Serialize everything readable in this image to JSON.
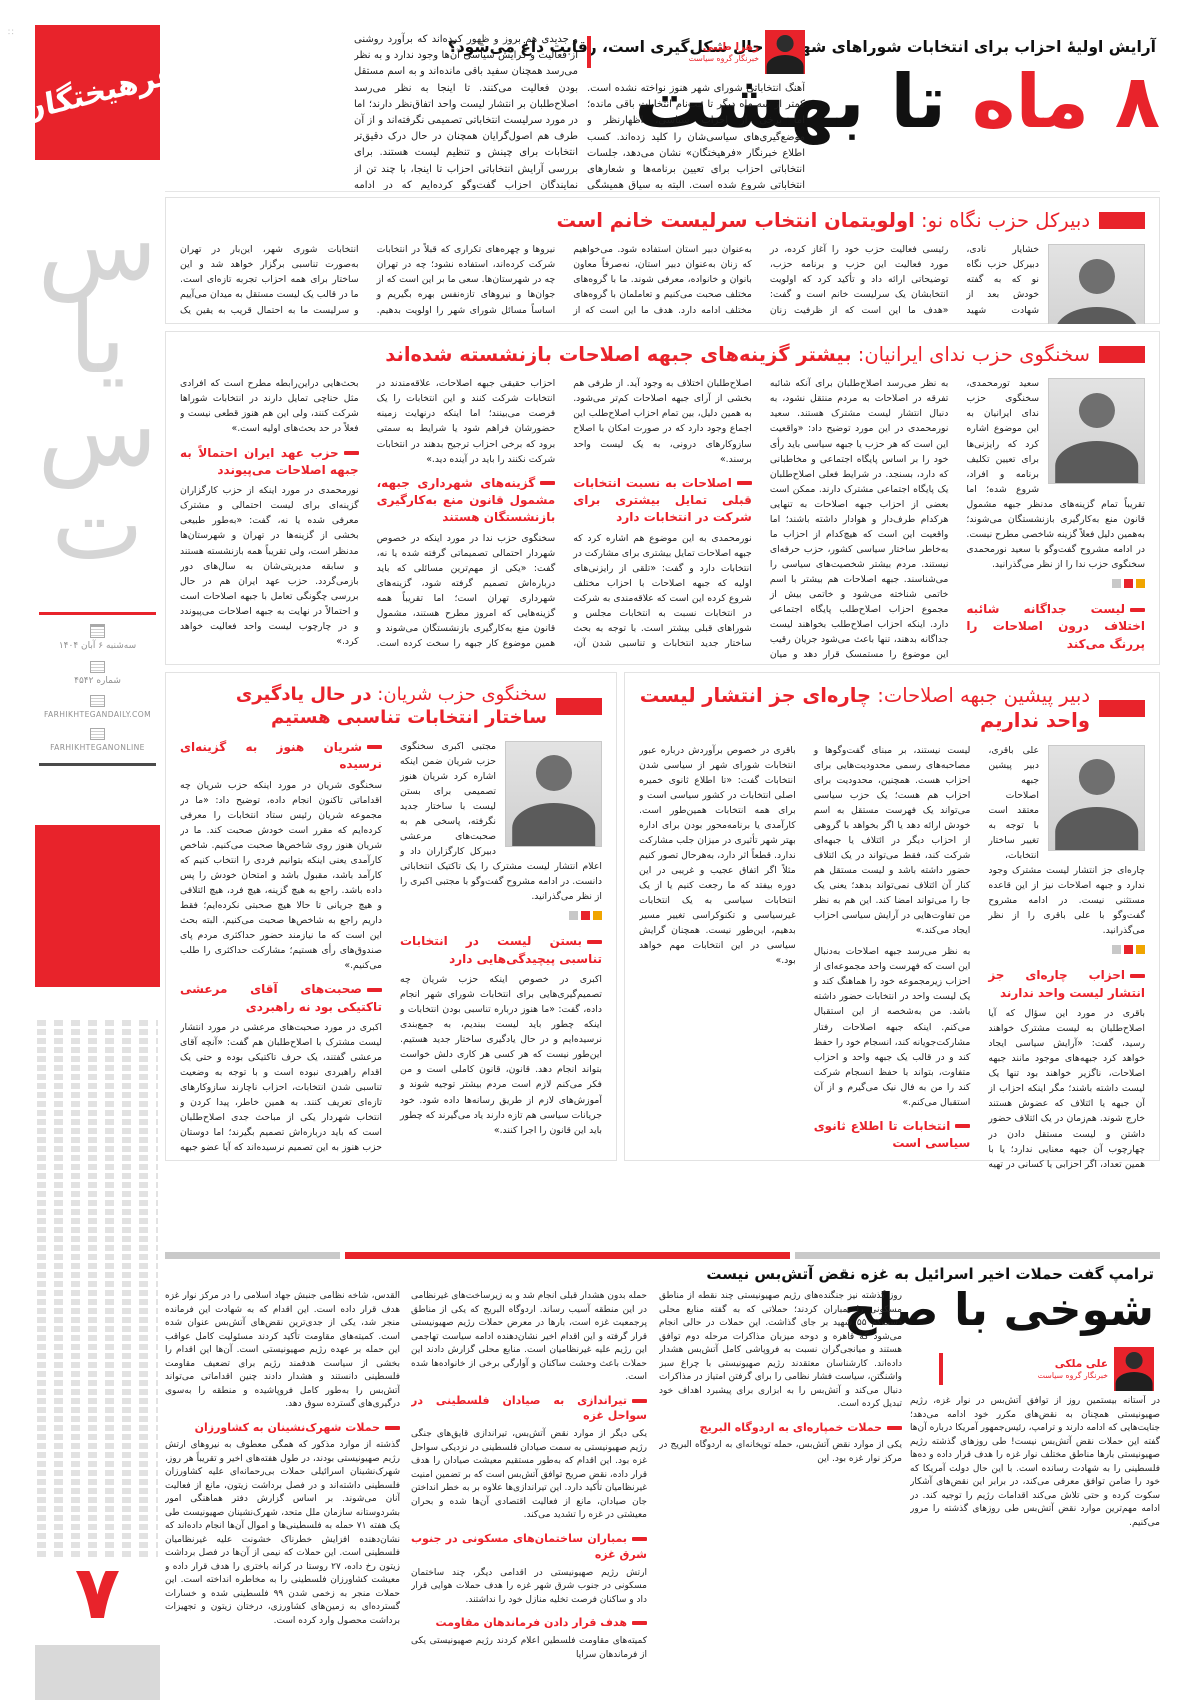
{
  "meta": {
    "logo": "فرهیختگان",
    "sec1": "س",
    "sec2": "یا",
    "sec3": "س",
    "sec4": "ت",
    "date": "سه‌شنبه ۶ آبان ۱۴۰۴",
    "issue": "شماره ۴۵۴۲",
    "site1": "FARHIKHTEGANDAILY.COM",
    "site2": "FARHIKHTEGANONLINE",
    "page": "۷",
    "corner": "∷"
  },
  "colors": {
    "accent": "#e8232b",
    "chip_yellow": "#f0a500",
    "chip_gray": "#c8c8c8"
  },
  "lead": {
    "kicker": "آرایش اولیهٔ احزاب برای انتخابات شوراهای شهر در حال شکل‌گیری است، رقابت داغ می‌شود؟",
    "h_red": "۸ ماه",
    "h_black": " تا بهشت",
    "author": "زهرا طیبی",
    "role": "خبرنگار گروه سیاست",
    "col_right": "آهنگ انتخاباتی شورای شهر هنوز نواخته نشده است. کمتر از سه ماه دیگر تا ثبت‌نام انتخابات باقی مانده؛ اما برخی از احزاب سیاسی، اظهارنظر و موضع‌گیری‌های سیاسی‌شان را کلید زده‌اند. کسب اطلاع خبرنگار «فرهیختگان» نشان می‌دهد، جلسات انتخاباتی احزاب برای تعیین برنامه‌ها و شعارهای انتخاباتی شروع شده است. البته به سیاق همیشگی انتخابات، احزاب تازه",
    "col_left": "و جدیدی هم بروز و ظهور کرده‌اند که برآورد روشنی از فعالیت و گرایش سیاسی آن‌ها وجود ندارد و به نظر می‌رسد همچنان سفید باقی مانده‌اند و به اسم مستقل بودن فعالیت می‌کنند. تا اینجا به نظر می‌رسد اصلاح‌طلبان بر انتشار لیست واحد اتفاق‌نظر دارند؛ اما در مورد سرلیست انتخاباتی تصمیمی نگرفته‌اند و از آن طرف هم اصول‌گرایان همچنان در حال درک دقیق‌تر انتخابات برای چینش و تنظیم لیست هستند. برای بررسی آرایش انتخاباتی احزاب تا اینجا، با چند تن از نمایندگان احزاب گفت‌وگو کرده‌ایم که در ادامه مشروح گفت‌وگوها را از نظر می‌گذرانید."
  },
  "articles": [
    {
      "prefix": "دبیرکل حزب نگاه نو:",
      "title": "اولویتمان انتخاب سرلیست خانم است",
      "blocks": [
        {
          "t": "p",
          "text": "خشایار نادی، دبیرکل حزب نگاه نو که به گفته خودش بعد از شهادت شهید رئیسی فعالیت حزب خود را آغاز کرده، در مورد فعالیت این حزب و برنامه حزب، توضیحاتی ارائه داد و تأکید کرد که اولویت انتخابشان یک سرلیست خانم است و گفت: «هدف ما این است که از ظرفیت زنان به‌عنوان دبیر استان استفاده شود. می‌خواهیم که زنان به‌عنوان دبیر استان، نه‌صرفاً معاون بانوان و خانواده، معرفی شوند. ما با گروه‌های مختلف صحبت می‌کنیم و تعاملمان با گروه‌های مختلف ادامه دارد. هدف ما این است که از نیروها و چهره‌های تکراری که قبلاً در انتخابات شرکت کرده‌اند، استفاده نشود؛ چه در تهران چه در شهرستان‌ها. سعی ما بر این است که از جوان‌ها و نیروهای تازه‌نفس بهره بگیریم و اساساً مسائل شورای شهر را اولویت بدهیم. انتخابات شوری شهر، این‌بار در تهران به‌صورت تناسبی برگزار خواهد شد و این ساختار برای همه احزاب تجربه تازه‌ای است. ما در قالب یک لیست مستقل به میدان می‌آییم و سرلیست ما به احتمال قریب به یقین یک خانم خواهد بود. ما اصراری نداریم حتماً با ائتلاف‌ها همراه شویم و بنابر شرایط، لیست نهایی ما از دل گفت‌وگو با گروه‌های مختلف بیرون خواهد آمد.»"
        }
      ]
    },
    {
      "prefix": "سخنگوی حزب ندای ایرانیان:",
      "title": "بیشتر گزینه‌های جبهه اصلاحات بازنشسته شده‌اند",
      "blocks": [
        {
          "t": "p",
          "text": "سعید تورمحمدی، سخنگوی حزب ندای ایرانیان به این موضوع اشاره کرد که رایزنی‌ها برای تعیین تکلیف برنامه و افراد، شروع شده؛ اما تقریباً تمام گزینه‌های مدنظر جبهه مشمول قانون منع به‌کارگیری بازنشستگان می‌شوند؛ به‌همین دلیل فعلاً گزینه شاخصی مطرح نیست. در ادامه مشروح گفت‌وگو با سعید نورمحمدی سخنگوی حزب ندا را از نظر می‌گذرانید."
        },
        {
          "t": "chips"
        },
        {
          "t": "sub",
          "text": "لیست جداگانه شائبه اختلاف درون اصلاحات را پررنگ می‌کند"
        },
        {
          "t": "p",
          "text": "به نظر می‌رسد اصلاح‌طلبان برای آنکه شائبه تفرقه در اصلاحات به مردم منتقل نشود، به دنبال انتشار لیست مشترک هستند. سعید نورمحمدی در این مورد توضیح داد: «واقعیت این است که هر حزب یا جبهه سیاسی باید رأی خود را بر اساس پایگاه اجتماعی و مخاطبانی که دارد، بسنجد. در شرایط فعلی اصلاح‌طلبان یک پایگاه اجتماعی مشترک دارند. ممکن است بعضی از احزاب جبهه اصلاحات به تنهایی هرکدام طرف‌دار و هوادار داشته باشند؛ اما واقعیت این است که هیچ‌کدام از احزاب ما به‌خاطر ساختار سیاسی کشور، حزب حرفه‌ای نیستند. مردم بیشتر شخصیت‌های سیاسی را می‌شناسند. جبهه اصلاحات هم بیشتر با اسم خاتمی شناخته می‌شود و خاتمی بیش از مجموع احزاب اصلاح‌طلب پایگاه اجتماعی دارد. اینکه احزاب اصلاح‌طلب بخواهند لیست جداگانه بدهند، تنها باعث می‌شود جریان رقیب این موضوع را مستمسک قرار دهد و میان اصلاح‌طلبان اختلاف به وجود آید. از طرفی هم بخشی از آرای جبهه اصلاحات کم‌تر می‌شود. به همین دلیل، بین تمام احزاب اصلاح‌طلب این اجماع وجود دارد که در صورت امکان با اصلاح سازوکارهای درونی، به یک لیست واحد برسند.»"
        },
        {
          "t": "sub",
          "text": "اصلاحات به نسبت انتخابات قبلی تمایل بیشتری برای شرکت در انتخابات دارد"
        },
        {
          "t": "p",
          "text": "نورمحمدی به این موضوع هم اشاره کرد که جبهه اصلاحات تمایل بیشتری برای مشارکت در انتخابات دارد و گفت: «تلقی از رایزنی‌های اولیه که جبهه اصلاحات با احزاب مختلف شروع کرده این است که علاقه‌مندی به شرکت در انتخابات نسبت به انتخابات مجلس و شوراهای قبلی بیشتر است. با توجه به بحث ساختار جدید انتخابات و تناسبی شدن آن، احزاب حقیقی جبهه اصلاحات، علاقه‌مندند در انتخابات شرکت کنند و این انتخابات را یک فرصت می‌بینند؛ اما اینکه درنهایت زمینه حضورشان فراهم شود یا شرایط به سمتی برود که برخی احزاب ترجیح بدهند در انتخابات شرکت نکنند را باید در آینده دید.»"
        },
        {
          "t": "sub",
          "text": "گزینه‌های شهرداری جبهه، مشمول قانون منع به‌کارگیری بازنشستگان هستند"
        },
        {
          "t": "p",
          "text": "سخنگوی حزب ندا در مورد اینکه در خصوص شهردار احتمالی تصمیماتی گرفته شده یا نه، گفت: «یکی از مهم‌ترین مسائلی که باید درباره‌اش تصمیم گرفته شود، گزینه‌های شهرداری تهران است؛ اما تقریباً همه گزینه‌هایی که امروز مطرح هستند، مشمول قانون منع به‌کارگیری بازنشستگان می‌شوند و همین موضوع کار جبهه را سخت کرده است. بحث‌هایی دراین‌رابطه مطرح است که افرادی مثل حناچی تمایل دارند در انتخابات شوراها شرکت کنند، ولی این هم هنوز قطعی نیست و فعلاً در حد بحث‌های اولیه است.»"
        },
        {
          "t": "sub",
          "text": "حزب عهد ایران احتمالاً به جبهه اصلاحات می‌پیوندد"
        },
        {
          "t": "p",
          "text": "نورمحمدی در مورد اینکه از حزب کارگزاران گزینه‌ای برای لیست احتمالی و مشترک معرفی شده یا نه، گفت: «به‌طور طبیعی بخشی از گزینه‌ها در تهران و شهرستان‌ها مدنظر است، ولی تقریباً همه بازنشسته هستند و سابقه مدیریتی‌شان به سال‌های دور بازمی‌گردد. حزب عهد ایران هم در حال بررسی چگونگی تعامل با جبهه اصلاحات است و احتمالاً در نهایت به جبهه اصلاحات می‌پیوندد و در چارچوب لیست واحد فعالیت خواهد کرد.»"
        }
      ]
    },
    {
      "prefix": "سخنگوی حزب شریان:",
      "title": "در حال یادگیری ساختار انتخابات تناسبی هستیم",
      "blocks": [
        {
          "t": "p",
          "text": "مجتبی اکبری سخنگوی حزب شریان ضمن اینکه اشاره کرد شریان هنوز تصمیمی برای بستن لیست با ساختار جدید نگرفته، پاسخی هم به صحبت‌های مرعشی دبیرکل کارگزاران داد و اعلام انتشار لیست مشترک را یک تاکتیک انتخاباتی دانست. در ادامه مشروح گفت‌وگو با مجتبی اکبری را از نظر می‌گذرانید."
        },
        {
          "t": "chips"
        },
        {
          "t": "sub",
          "text": "بستن لیست در انتخابات تناسبی پیچیدگی‌هایی دارد"
        },
        {
          "t": "p",
          "text": "اکبری در خصوص اینکه حزب شریان چه تصمیم‌گیری‌هایی برای انتخابات شورای شهر انجام داده، گفت: «ما هنوز درباره تناسبی بودن انتخابات و اینکه چطور باید لیست ببندیم، به جمع‌بندی نرسیده‌ایم و در حال یادگیری ساختار جدید هستیم. این‌طور نیست که هر کسی هر کاری دلش خواست بتواند انجام دهد. قانون، قانون کاملی است و من فکر می‌کنم لازم است مردم بیشتر توجیه شوند و آموزش‌های لازم از طریق رسانه‌ها داده شود. خود جریانات سیاسی هم تازه دارند یاد می‌گیرند که چطور باید این قانون را اجرا کنند.»"
        },
        {
          "t": "sub",
          "text": "شریان هنوز به گزینه‌ای نرسیده"
        },
        {
          "t": "p",
          "text": "سخنگوی شریان در مورد اینکه حزب شریان چه اقداماتی تاکنون انجام داده، توضیح داد: «ما در مجموعه شریان رئیس ستاد انتخابات را معرفی کرده‌ایم که مقرر است خودش صحبت کند. ما در شریان هنوز روی شاخص‌ها صحبت می‌کنیم. شاخص کارآمدی یعنی اینکه بتوانیم فردی را انتخاب کنیم که کارآمد باشد، مقبول باشد و امتحان خودش را پس داده باشد. راجع به هیچ گزینه، هیچ فرد، هیچ ائتلافی و هیچ جریانی تا حالا هیچ صحبتی نکرده‌ایم؛ فقط داریم راجع به شاخص‌ها صحبت می‌کنیم. البته بحث این است که ما نیازمند حضور حداکثری مردم پای صندوق‌های رأی هستیم؛ مشارکت حداکثری را طلب می‌کنیم.»"
        },
        {
          "t": "sub",
          "text": "صحبت‌های آقای مرعشی تاکتیکی بود نه راهبردی"
        },
        {
          "t": "p",
          "text": "اکبری در مورد صحبت‌های مرعشی در مورد انتشار لیست مشترک با اصلاح‌طلبان هم گفت: «آنچه آقای مرعشی گفتند، یک حرف تاکتیکی بوده و حتی یک اقدام راهبردی نبوده است و با توجه به وضعیت تناسبی شدن انتخابات، احزاب ناچارند سازوکارهای تازه‌ای تعریف کنند. به همین خاطر، پیدا کردن و انتخاب شهردار یکی از مباحث جدی اصلاح‌طلبان است که باید درباره‌اش تصمیم بگیرند؛ اما دوستان حزب هنوز به این تصمیم نرسیده‌اند که آیا عضو جبهه اصلاحات باشند یا بیرون از جبهه اصلاحات فعالیت کنند.»"
        }
      ]
    },
    {
      "prefix": "دبیر پیشین جبهه اصلاحات:",
      "title": "چاره‌ای جز انتشار لیست واحد نداریم",
      "blocks": [
        {
          "t": "p",
          "text": "علی باقری، دبیر پیشین جبهه اصلاحات معتقد است با توجه به تغییر ساختار انتخابات، چاره‌ای جز انتشار لیست مشترک وجود ندارد و جبهه اصلاحات نیز از این قاعده مستثنی نیست. در ادامه مشروح گفت‌وگو با علی باقری را از نظر می‌گذرانید."
        },
        {
          "t": "chips"
        },
        {
          "t": "sub",
          "text": "احزاب چاره‌ای جز انتشار لیست واحد ندارند"
        },
        {
          "t": "p",
          "text": "باقری در مورد این سؤال که آیا اصلاح‌طلبان به لیست مشترک خواهند رسید، گفت: «آرایش سیاسی ایجاد خواهد کرد جبهه‌های موجود مانند جبهه اصلاحات، ناگزیر خواهند بود تنها یک لیست داشته باشند؛ مگر اینکه احزاب از آن جبهه یا ائتلاف که عضوش هستند خارج شوند. هم‌زمان در یک ائتلاف حضور داشتن و لیست مستقل دادن در چهارچوب آن جبهه معنایی ندارد؛ یا با همین تعداد، اگر احزابی یا کسانی در تهیه لیست نیستند، بر مبنای گفت‌وگوها و مصاحبه‌های رسمی محدودیت‌هایی برای احزاب هست. همچنین، محدودیت برای احزاب هم هست؛ یک حزب سیاسی می‌تواند یک فهرست مستقل به اسم خودش ارائه دهد یا اگر بخواهد با گروهی از احزاب دیگر در ائتلاف یا جبهه‌ای شرکت کند، فقط می‌تواند در یک ائتلاف حضور داشته باشد و لیست مستقل هم کنار آن ائتلاف نمی‌تواند بدهد؛ یعنی یک جا را می‌تواند امضا کند. این هم به نظر من تفاوت‌هایی در آرایش سیاسی احزاب ایجاد می‌کند.»"
        },
        {
          "t": "p",
          "text": "به نظر می‌رسد جبهه اصلاحات به‌دنبال این است که فهرست واحد مجموعه‌ای از احزاب زیرمجموعه خود را هماهنگ کند و یک لیست واحد در انتخابات حضور داشته باشد. من به‌شخصه از این استقبال می‌کنم. اینکه جبهه اصلاحات رفتار مشارکت‌جویانه کند، انسجام خود را حفظ کند و در قالب یک جبهه واحد و احزاب متفاوت، بتواند با حفظ انسجام شرکت کند را من به فال نیک می‌گیرم و از آن استقبال می‌کنم.»"
        },
        {
          "t": "sub",
          "text": "انتخابات تا اطلاع ثانوی سیاسی است"
        },
        {
          "t": "p",
          "text": "باقری در خصوص برآوردش درباره عبور انتخابات شورای شهر از سیاسی شدن انتخابات گفت: «تا اطلاع ثانوی خمیره اصلی انتخابات در کشور سیاسی است و برای همه انتخابات همین‌طور است. کارآمدی یا برنامه‌محور بودن برای اداره بهتر شهر تأثیری در میزان جلب مشارکت ندارد. قطعاً اثر دارد، به‌هرحال تصور کنیم مثلاً اگر اتفاق عجیب و غریبی در این دوره بیفتد که ما رجعت کنیم یا از یک انتخابات سیاسی به یک انتخابات غیرسیاسی و تکنوکراسی تغییر مسیر بدهیم، این‌طور نیست. همچنان گرایش سیاسی در این انتخابات مهم خواهد بود.»"
        }
      ]
    }
  ],
  "bottom": {
    "kicker": "ترامپ گفت حملات اخیر اسرائیل به غزه نقض آتش‌بس نیست",
    "title": "شوخی با صلح",
    "author": "علی ملکی",
    "role": "خبرنگار گروه سیاست",
    "columns": {
      "a": [
        {
          "t": "p",
          "text": "در آستانه بیستمین روز از توافق آتش‌بس در نوار غزه، رژیم صهیونیستی همچنان به نقض‌های مکرر خود ادامه می‌دهد؛ جنایت‌هایی که ادامه دارند و ترامپ، رئیس‌جمهور آمریکا درباره آن‌ها گفته این حملات نقض آتش‌بس نیست! طی روزهای گذشته رژیم صهیونیستی بارها مناطق مختلف نوار غزه را هدف قرار داده و ده‌ها فلسطینی را به شهادت رسانده است. با این حال دولت آمریکا که خود را ضامن توافق معرفی می‌کند، در برابر این نقض‌های آشکار سکوت کرده و حتی تلاش می‌کند اقدامات رژیم را توجیه کند. در ادامه مهم‌ترین موارد نقض آتش‌بس طی روزهای گذشته را مرور می‌کنیم."
        }
      ],
      "b": [
        {
          "t": "p",
          "text": "روز گذشته نیز جنگنده‌های رژیم صهیونیستی چند نقطه از مناطق مسکونی را بمباران کردند؛ حملاتی که به گفته منابع محلی دست‌کم ۵۵ شهید بر جای گذاشت. این حملات در حالی انجام می‌شود که قاهره و دوحه میزبان مذاکرات مرحله دوم توافق هستند و میانجی‌گران نسبت به فروپاشی کامل آتش‌بس هشدار داده‌اند. کارشناسان معتقدند رژیم صهیونیستی با چراغ سبز واشنگتن، سیاست فشار نظامی را برای گرفتن امتیاز در مذاکرات دنبال می‌کند و آتش‌بس را به ابزاری برای پیشبرد اهداف خود تبدیل کرده است."
        },
        {
          "t": "sub",
          "text": "حملات خمپاره‌ای به اردوگاه البریج"
        },
        {
          "t": "p",
          "text": "یکی از موارد نقض آتش‌بس، حمله توپخانه‌ای به اردوگاه البریج در مرکز نوار غزه بود. این"
        }
      ],
      "c": [
        {
          "t": "p",
          "text": "حمله بدون هشدار قبلی انجام شد و به زیرساخت‌های غیرنظامی در این منطقه آسیب رساند. اردوگاه البریج که یکی از مناطق پرجمعیت غزه است، بارها در معرض حملات رژیم صهیونیستی قرار گرفته و این اقدام اخیر نشان‌دهنده ادامه سیاست تهاجمی این رژیم علیه غیرنظامیان است. منابع محلی گزارش دادند این حملات باعث وحشت ساکنان و آوارگی برخی از خانواده‌ها شده است."
        },
        {
          "t": "sub",
          "text": "تیراندازی به صیادان فلسطینی در سواحل غزه"
        },
        {
          "t": "p",
          "text": "یکی دیگر از موارد نقض آتش‌بس، تیراندازی قایق‌های جنگی رژیم صهیونیستی به سمت صیادان فلسطینی در نزدیکی سواحل غزه بود. این اقدام که به‌طور مستقیم معیشت صیادان را هدف قرار داده، نقض صریح توافق آتش‌بس است که بر تضمین امنیت غیرنظامیان تأکید دارد. این تیراندازی‌ها علاوه بر به خطر انداختن جان صیادان، مانع از فعالیت اقتصادی آن‌ها شده و بحران معیشتی در غزه را تشدید می‌کند."
        },
        {
          "t": "sub",
          "text": "بمباران ساختمان‌های مسکونی در جنوب شرق غزه"
        },
        {
          "t": "p",
          "text": "ارتش رژیم صهیونیستی در اقدامی دیگر، چند ساختمان مسکونی در جنوب شرق شهر غزه را هدف حملات هوایی قرار داد و ساکنان فرصت تخلیه منازل خود را نداشتند."
        },
        {
          "t": "sub",
          "text": "هدف قرار دادن فرماندهان مقاومت"
        },
        {
          "t": "p",
          "text": "کمیته‌های مقاومت فلسطین اعلام کردند رژیم صهیونیستی یکی از فرماندهان سرایا"
        }
      ],
      "d": [
        {
          "t": "p",
          "text": "القدس، شاخه نظامی جنبش جهاد اسلامی را در مرکز نوار غزه هدف قرار داده است. این اقدام که به شهادت این فرمانده منجر شد، یکی از جدی‌ترین نقض‌های آتش‌بس عنوان شده است. کمیته‌های مقاومت تأکید کردند مسئولیت کامل عواقب این حمله بر عهده رژیم صهیونیستی است. آن‌ها این اقدام را بخشی از سیاست هدفمند رژیم برای تضعیف مقاومت فلسطینی دانستند و هشدار دادند چنین اقداماتی می‌تواند آتش‌بس را به‌طور کامل فروپاشیده و منطقه را به‌سوی درگیری‌های گسترده سوق دهد."
        },
        {
          "t": "sub",
          "text": "حملات شهرک‌نشینان به کشاورزان"
        },
        {
          "t": "p",
          "text": "گذشته از موارد مذکور که همگی معطوف به نیروهای ارتش رژیم صهیونیستی بودند، در طول هفته‌های اخیر و تقریباً هر روز، شهرک‌نشینان اسرائیلی حملات بی‌رحمانه‌ای علیه کشاورزان فلسطینی داشته‌اند و در فصل برداشت زیتون، مانع از فعالیت آنان می‌شوند. بر اساس گزارش دفتر هماهنگی امور بشردوستانه سازمان ملل متحد، شهرک‌نشینان صهیونیست طی یک هفته ۷۱ حمله به فلسطینی‌ها و اموال آن‌ها انجام داده‌اند که نشان‌دهنده افزایش خطرناک خشونت علیه غیرنظامیان فلسطینی است. این حملات که نیمی از آن‌ها در فصل برداشت زیتون رخ داده، ۲۷ روستا در کرانه باختری را هدف قرار داده و معیشت کشاورزان فلسطینی را به مخاطره انداخته است. این حملات منجر به زخمی شدن ۹۹ فلسطینی شده و خسارات گسترده‌ای به زمین‌های کشاورزی، درختان زیتون و تجهیزات برداشت محصول وارد کرده است."
        }
      ]
    }
  }
}
